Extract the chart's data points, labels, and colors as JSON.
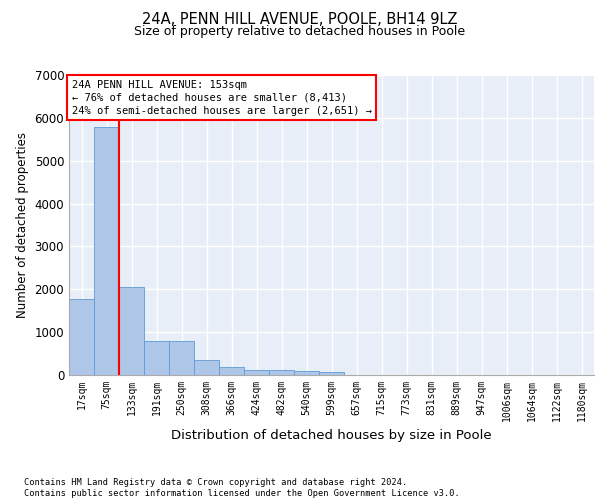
{
  "title1": "24A, PENN HILL AVENUE, POOLE, BH14 9LZ",
  "title2": "Size of property relative to detached houses in Poole",
  "xlabel": "Distribution of detached houses by size in Poole",
  "ylabel": "Number of detached properties",
  "bar_values": [
    1780,
    5780,
    2060,
    800,
    800,
    340,
    190,
    120,
    110,
    100,
    70,
    0,
    0,
    0,
    0,
    0,
    0,
    0,
    0,
    0,
    0
  ],
  "bar_labels": [
    "17sqm",
    "75sqm",
    "133sqm",
    "191sqm",
    "250sqm",
    "308sqm",
    "366sqm",
    "424sqm",
    "482sqm",
    "540sqm",
    "599sqm",
    "657sqm",
    "715sqm",
    "773sqm",
    "831sqm",
    "889sqm",
    "947sqm",
    "1006sqm",
    "1064sqm",
    "1122sqm",
    "1180sqm"
  ],
  "bar_color": "#aec6e8",
  "bar_edge_color": "#5b9bd5",
  "background_color": "#e8eef7",
  "grid_color": "#ffffff",
  "ylim": [
    0,
    7000
  ],
  "yticks": [
    0,
    1000,
    2000,
    3000,
    4000,
    5000,
    6000,
    7000
  ],
  "property_label": "24A PENN HILL AVENUE: 153sqm",
  "annotation_line1": "← 76% of detached houses are smaller (8,413)",
  "annotation_line2": "24% of semi-detached houses are larger (2,651) →",
  "red_line_bin": 2,
  "footer1": "Contains HM Land Registry data © Crown copyright and database right 2024.",
  "footer2": "Contains public sector information licensed under the Open Government Licence v3.0."
}
